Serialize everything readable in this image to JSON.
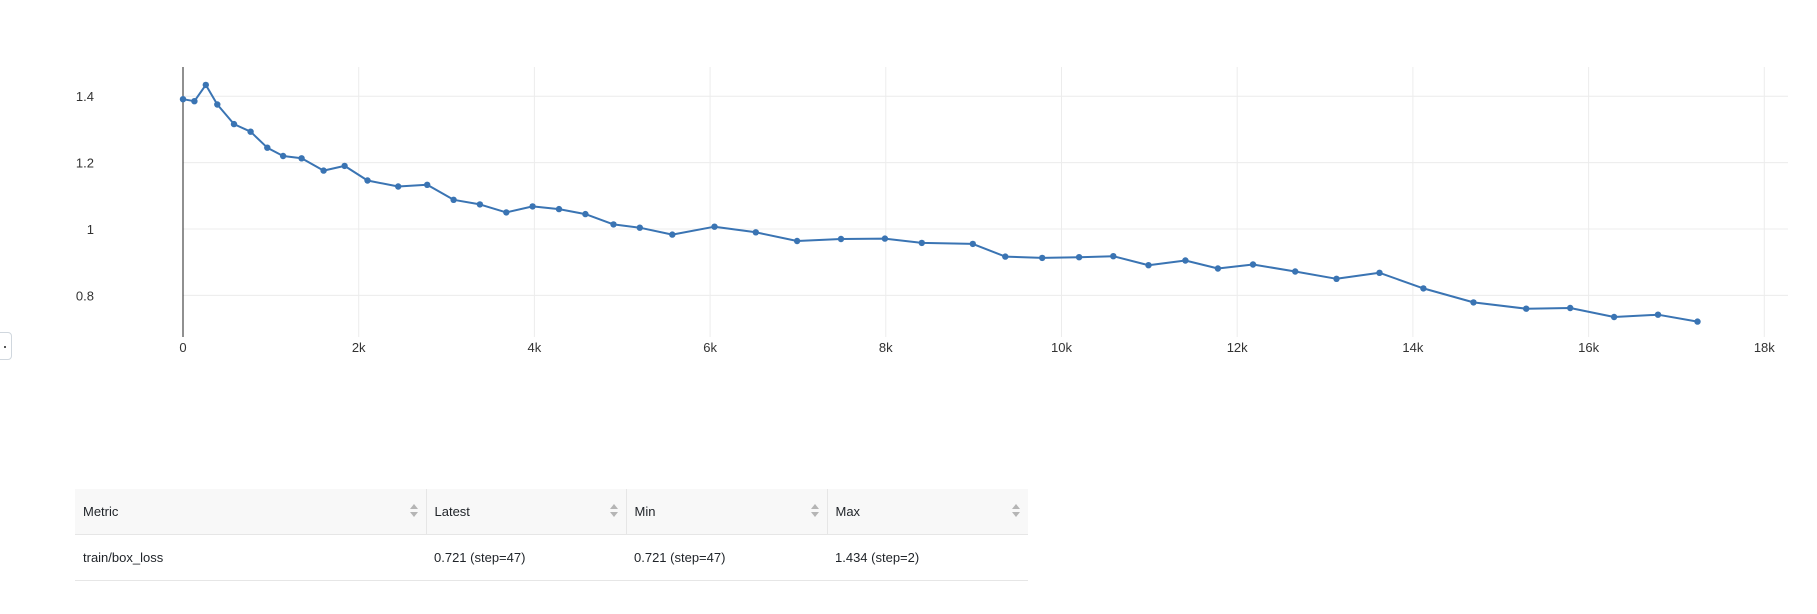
{
  "chart_data": {
    "type": "line",
    "title": "",
    "xlabel": "",
    "ylabel": "",
    "xlim": [
      0,
      18000
    ],
    "ylim": [
      0.7,
      1.47
    ],
    "grid": true,
    "line_color": "#3a74b3",
    "x_ticks": [
      0,
      2000,
      4000,
      6000,
      8000,
      10000,
      12000,
      14000,
      16000,
      18000
    ],
    "x_tick_labels": [
      "0",
      "2k",
      "4k",
      "6k",
      "8k",
      "10k",
      "12k",
      "14k",
      "16k",
      "18k"
    ],
    "y_ticks": [
      0.8,
      1.0,
      1.2,
      1.4
    ],
    "y_tick_labels": [
      "0.8",
      "1",
      "1.2",
      "1.4"
    ],
    "series": [
      {
        "x": [
          0,
          130,
          260,
          390,
          580,
          770,
          960,
          1140,
          1350,
          1600,
          1840,
          2100,
          2450,
          2780,
          3080,
          3380,
          3680,
          3980,
          4280,
          4580,
          4900,
          5200,
          5570,
          6050,
          6520,
          6990,
          7490,
          7990,
          8410,
          8990,
          9360,
          9780,
          10200,
          10590,
          10990,
          11410,
          11780,
          12180,
          12660,
          13130,
          13620,
          14120,
          14690,
          15290,
          15790,
          16290,
          16790,
          17240
        ],
        "y": [
          1.391,
          1.385,
          1.434,
          1.375,
          1.316,
          1.293,
          1.245,
          1.22,
          1.213,
          1.176,
          1.19,
          1.146,
          1.128,
          1.133,
          1.088,
          1.074,
          1.05,
          1.068,
          1.06,
          1.045,
          1.014,
          1.004,
          0.983,
          1.007,
          0.99,
          0.964,
          0.97,
          0.971,
          0.958,
          0.955,
          0.917,
          0.913,
          0.915,
          0.918,
          0.891,
          0.905,
          0.881,
          0.893,
          0.872,
          0.85,
          0.868,
          0.821,
          0.779,
          0.76,
          0.762,
          0.735,
          0.742,
          0.721
        ]
      }
    ]
  },
  "table": {
    "headers": [
      "Metric",
      "Latest",
      "Min",
      "Max"
    ],
    "rows": [
      {
        "metric": "train/box_loss",
        "latest": "0.721 (step=47)",
        "min": "0.721 (step=47)",
        "max": "1.434 (step=2)"
      }
    ]
  }
}
